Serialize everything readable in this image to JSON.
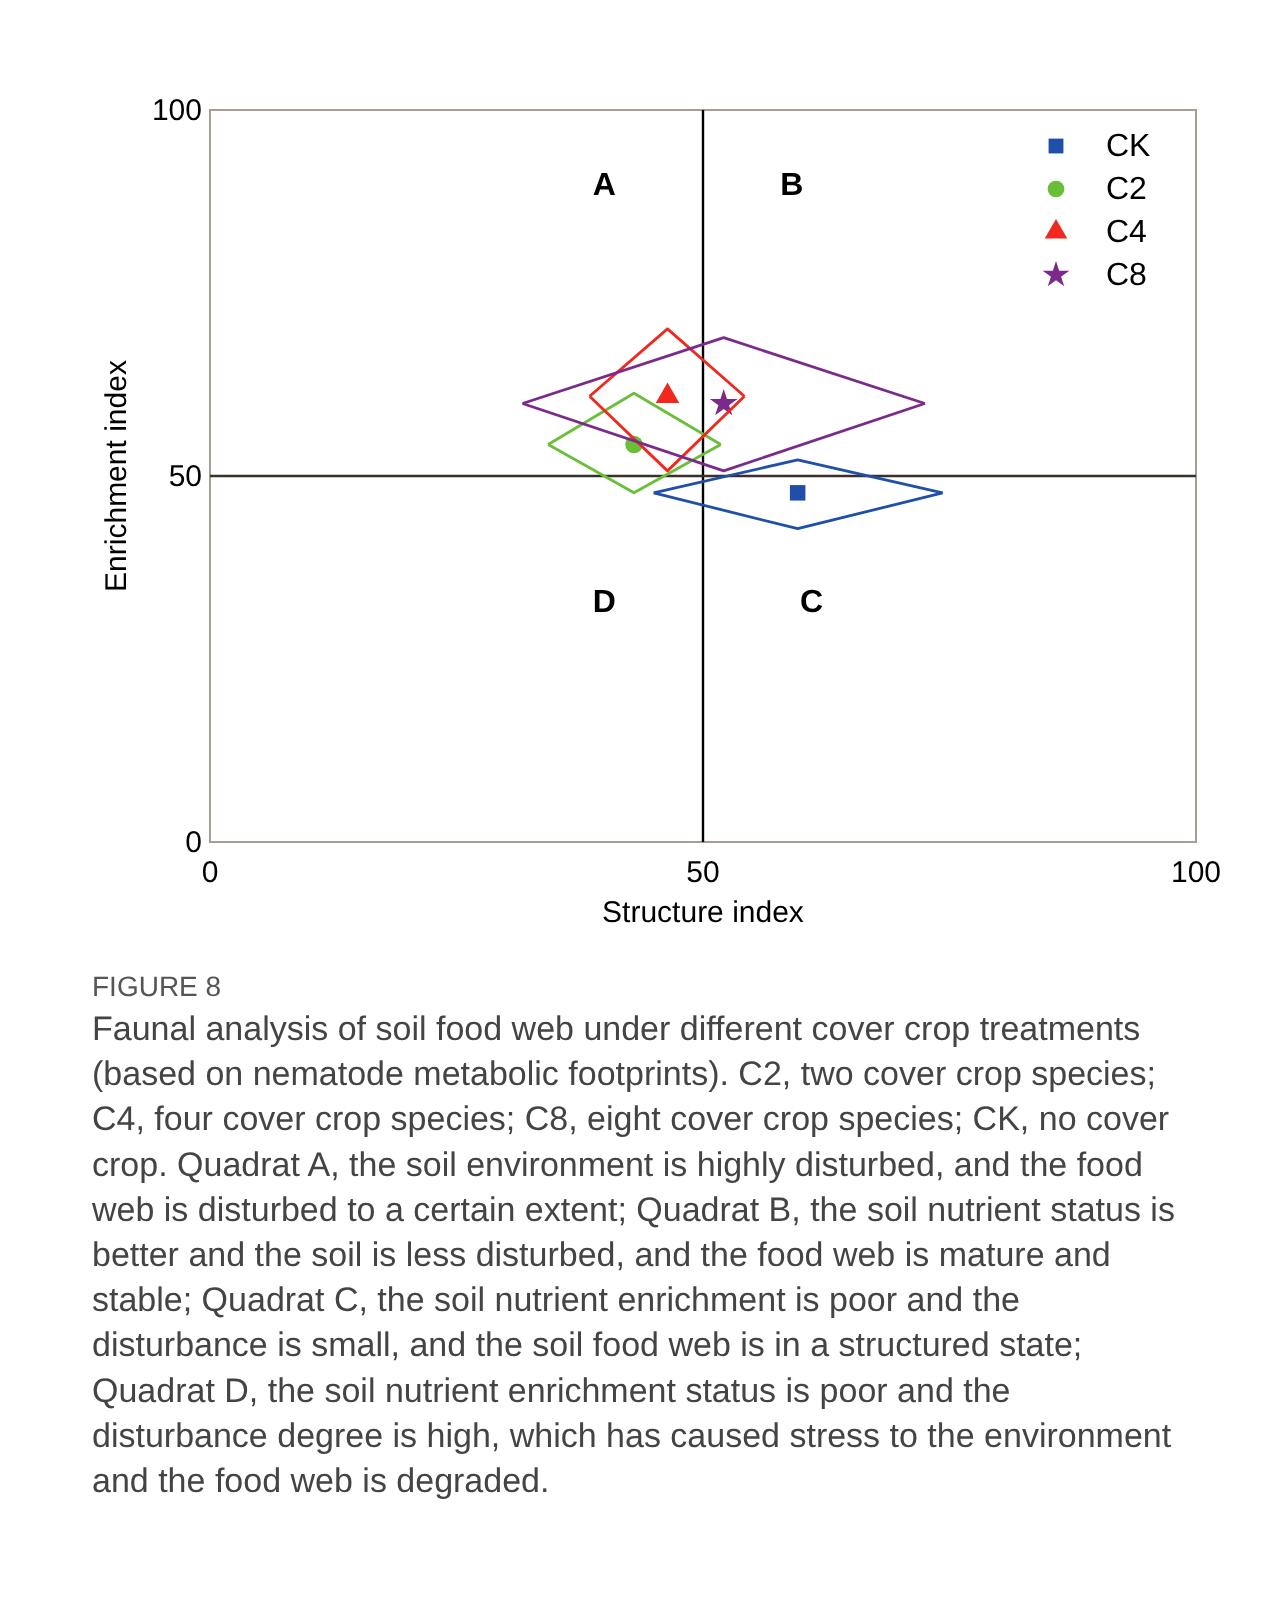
{
  "chart_data": {
    "type": "scatter",
    "xlabel": "Structure index",
    "ylabel": "Enrichment index",
    "xlim": [
      0,
      100
    ],
    "ylim": [
      0,
      100
    ],
    "xticks": [
      0,
      50,
      100
    ],
    "yticks": [
      0,
      50,
      100
    ],
    "legend": "top right",
    "series": [
      {
        "name": "CK",
        "color": "#1f4fa8",
        "marker": "square",
        "x": [
          59.6
        ],
        "values": [
          47.7
        ]
      },
      {
        "name": "C2",
        "color": "#6abf3a",
        "marker": "circle",
        "x": [
          43.0
        ],
        "values": [
          54.3
        ]
      },
      {
        "name": "C4",
        "color": "#f0281e",
        "marker": "triangle",
        "x": [
          46.4
        ],
        "values": [
          60.9
        ]
      },
      {
        "name": "C8",
        "color": "#7a2a8a",
        "marker": "star",
        "x": [
          52.1
        ],
        "values": [
          59.9
        ]
      },
      {
        "type": "line",
        "color": "#1f4fa8",
        "marker": "none",
        "x": [
          45.0,
          59.6,
          74.3
        ],
        "values": [
          47.7,
          52.2,
          47.7
        ]
      },
      {
        "type": "line",
        "color": "#1f4fa8",
        "marker": "none",
        "x": [
          45.0,
          59.6,
          74.3
        ],
        "values": [
          47.7,
          42.8,
          47.7
        ]
      },
      {
        "type": "line",
        "color": "#6abf3a",
        "marker": "none",
        "x": [
          34.3,
          43.0,
          51.8
        ],
        "values": [
          54.3,
          61.3,
          54.3
        ]
      },
      {
        "type": "line",
        "color": "#6abf3a",
        "marker": "none",
        "x": [
          34.3,
          43.0,
          51.8
        ],
        "values": [
          54.3,
          47.7,
          54.3
        ]
      },
      {
        "type": "line",
        "color": "#f0281e",
        "marker": "none",
        "x": [
          38.5,
          46.4,
          54.2
        ],
        "values": [
          60.9,
          70.1,
          60.9
        ]
      },
      {
        "type": "line",
        "color": "#f0281e",
        "marker": "none",
        "x": [
          38.5,
          46.4,
          54.2
        ],
        "values": [
          60.9,
          50.7,
          60.9
        ]
      },
      {
        "type": "line",
        "color": "#7a2a8a",
        "marker": "none",
        "x": [
          31.7,
          52.1,
          72.5
        ],
        "values": [
          59.9,
          68.9,
          59.9
        ]
      },
      {
        "type": "line",
        "color": "#7a2a8a",
        "marker": "none",
        "x": [
          31.7,
          52.1,
          72.5
        ],
        "values": [
          59.9,
          50.7,
          59.9
        ]
      }
    ],
    "ref_lines": [
      {
        "axis": "x",
        "value": 50,
        "color": "#000000"
      },
      {
        "axis": "y",
        "value": 50,
        "color": "#3a302a"
      }
    ],
    "annotations": [
      "A",
      "B",
      "D",
      "C",
      "FIGURE 8",
      "Faunal analysis of soil food web under different cover crop treatments (based on nematode metabolic footprints). C2, two cover crop species; C4, four cover crop species; C8, eight cover crop species; CK, no cover crop. Quadrat A, the soil environment is highly disturbed, and the food web is disturbed to a certain extent; Quadrat B, the soil nutrient status is better and the soil is less disturbed, and the food web is mature and stable; Quadrat C, the soil nutrient enrichment is poor and the disturbance is small, and the soil food web is in a structured state; Quadrat D, the soil nutrient enrichment status is poor and the disturbance degree is high, which has caused stress to the environment and the food web is degraded."
    ]
  }
}
